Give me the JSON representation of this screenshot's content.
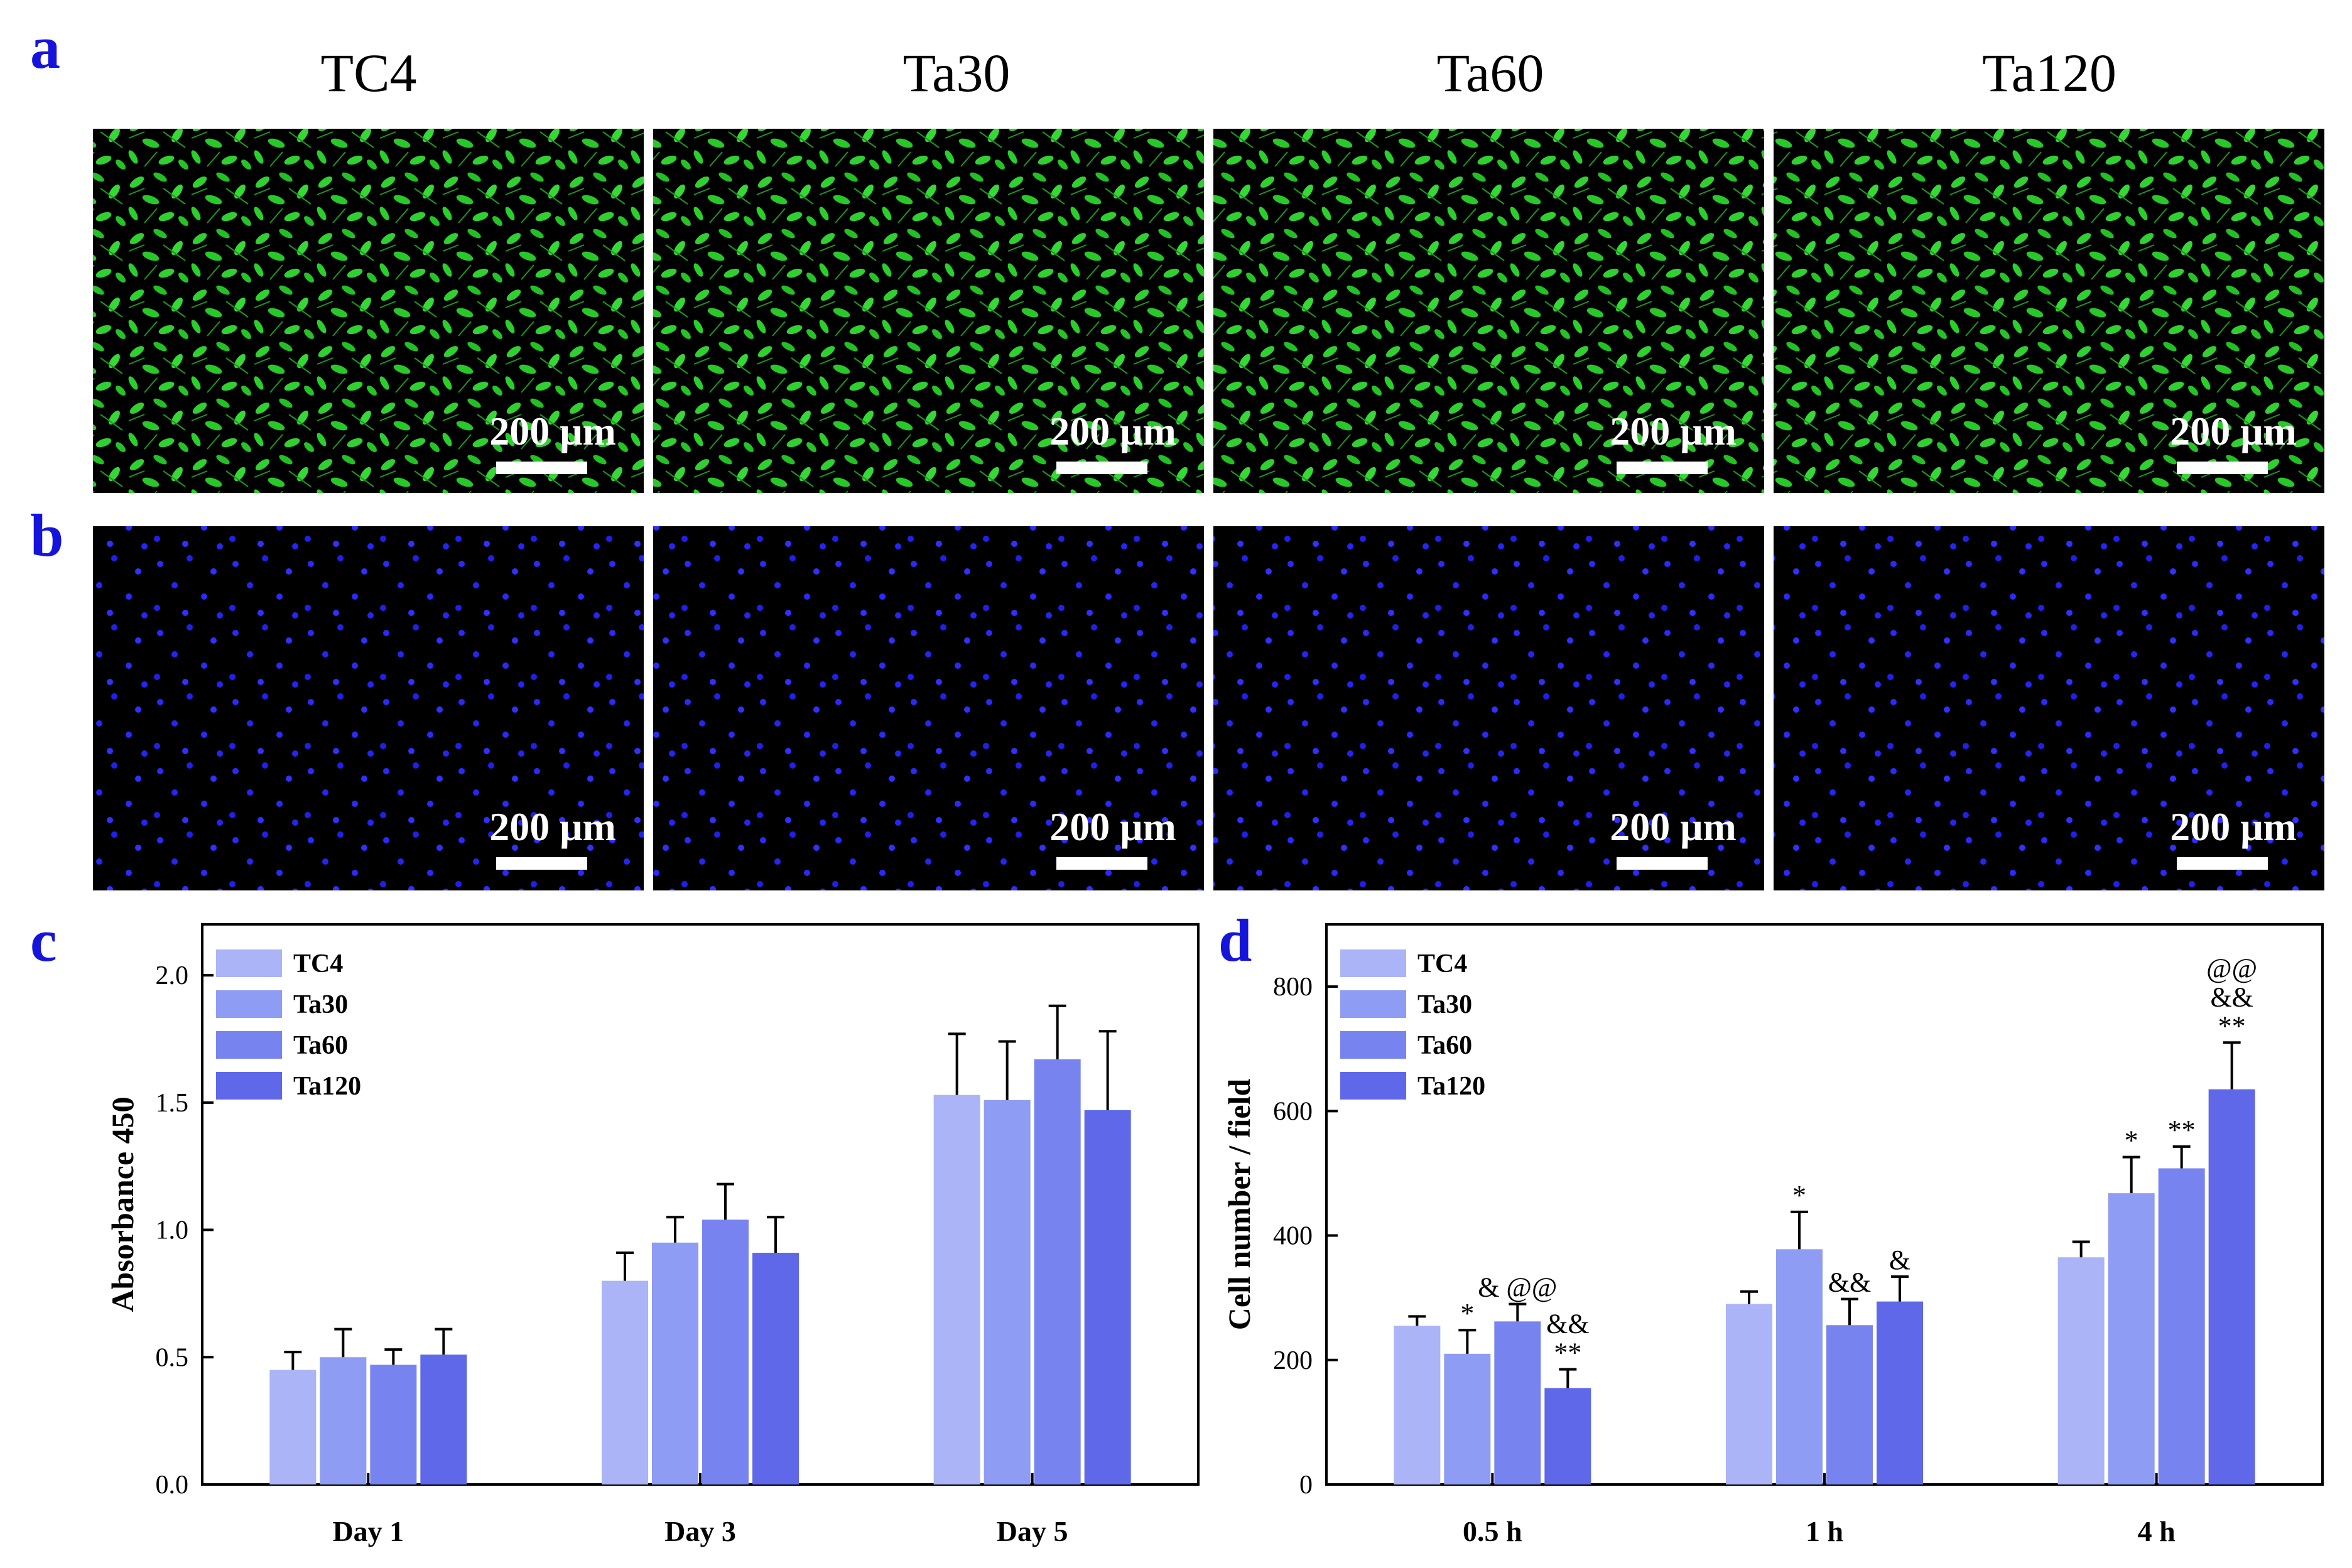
{
  "figure": {
    "colors": {
      "panel_letter": "#1414dd",
      "live_cell": "#22cc22",
      "nucleus": "#2a2aff",
      "micro_bg": "#000000",
      "series": [
        "#aab4f7",
        "#8f9cf3",
        "#7784ef",
        "#5e68e8"
      ],
      "error_bar": "#000000"
    },
    "icons": [
      "calcein-fluorescence-image",
      "dapi-nuclei-image",
      "scale-bar"
    ]
  },
  "panel_a": {
    "letter": "a",
    "titles": [
      "TC4",
      "Ta30",
      "Ta60",
      "Ta120"
    ],
    "scale_label": "200 μm"
  },
  "panel_b": {
    "letter": "b",
    "scale_label": "200 μm"
  },
  "chart_data": [
    {
      "id": "c",
      "letter": "c",
      "type": "bar",
      "title": "",
      "xlabel": "",
      "ylabel": "Absorbance 450",
      "ylim": [
        0,
        2.2
      ],
      "yticks": [
        0.0,
        0.5,
        1.0,
        1.5,
        2.0
      ],
      "ytick_labels": [
        "0.0",
        "0.5",
        "1.0",
        "1.5",
        "2.0"
      ],
      "categories": [
        "Day 1",
        "Day 3",
        "Day 5"
      ],
      "legend_position": "top-left",
      "series": [
        {
          "name": "TC4",
          "values": [
            0.45,
            0.8,
            1.53
          ],
          "errors": [
            0.07,
            0.11,
            0.24
          ]
        },
        {
          "name": "Ta30",
          "values": [
            0.5,
            0.95,
            1.51
          ],
          "errors": [
            0.11,
            0.1,
            0.23
          ]
        },
        {
          "name": "Ta60",
          "values": [
            0.47,
            1.04,
            1.67
          ],
          "errors": [
            0.06,
            0.14,
            0.21
          ]
        },
        {
          "name": "Ta120",
          "values": [
            0.51,
            0.91,
            1.47
          ],
          "errors": [
            0.1,
            0.14,
            0.31
          ]
        }
      ],
      "annotations": []
    },
    {
      "id": "d",
      "letter": "d",
      "type": "bar",
      "title": "",
      "xlabel": "",
      "ylabel": "Cell number / field",
      "ylim": [
        0,
        900
      ],
      "yticks": [
        0,
        200,
        400,
        600,
        800
      ],
      "ytick_labels": [
        "0",
        "200",
        "400",
        "600",
        "800"
      ],
      "categories": [
        "0.5 h",
        "1 h",
        "4 h"
      ],
      "legend_position": "top-left",
      "series": [
        {
          "name": "TC4",
          "values": [
            255,
            290,
            365
          ],
          "errors": [
            15,
            20,
            25
          ]
        },
        {
          "name": "Ta30",
          "values": [
            210,
            378,
            468
          ],
          "errors": [
            38,
            60,
            58
          ]
        },
        {
          "name": "Ta60",
          "values": [
            262,
            256,
            508
          ],
          "errors": [
            28,
            42,
            35
          ]
        },
        {
          "name": "Ta120",
          "values": [
            155,
            294,
            635
          ],
          "errors": [
            30,
            40,
            75
          ]
        }
      ],
      "annotations": [
        {
          "category": 0,
          "series": 1,
          "lines": [
            "*"
          ]
        },
        {
          "category": 0,
          "series": 2,
          "lines": [
            "& @@"
          ]
        },
        {
          "category": 0,
          "series": 3,
          "lines": [
            "&&",
            "**"
          ]
        },
        {
          "category": 1,
          "series": 1,
          "lines": [
            "*"
          ]
        },
        {
          "category": 1,
          "series": 2,
          "lines": [
            "&&"
          ]
        },
        {
          "category": 1,
          "series": 3,
          "lines": [
            "&"
          ]
        },
        {
          "category": 2,
          "series": 1,
          "lines": [
            "*"
          ]
        },
        {
          "category": 2,
          "series": 2,
          "lines": [
            "**"
          ]
        },
        {
          "category": 2,
          "series": 3,
          "lines": [
            "@@",
            "&&",
            "**"
          ]
        }
      ]
    }
  ]
}
